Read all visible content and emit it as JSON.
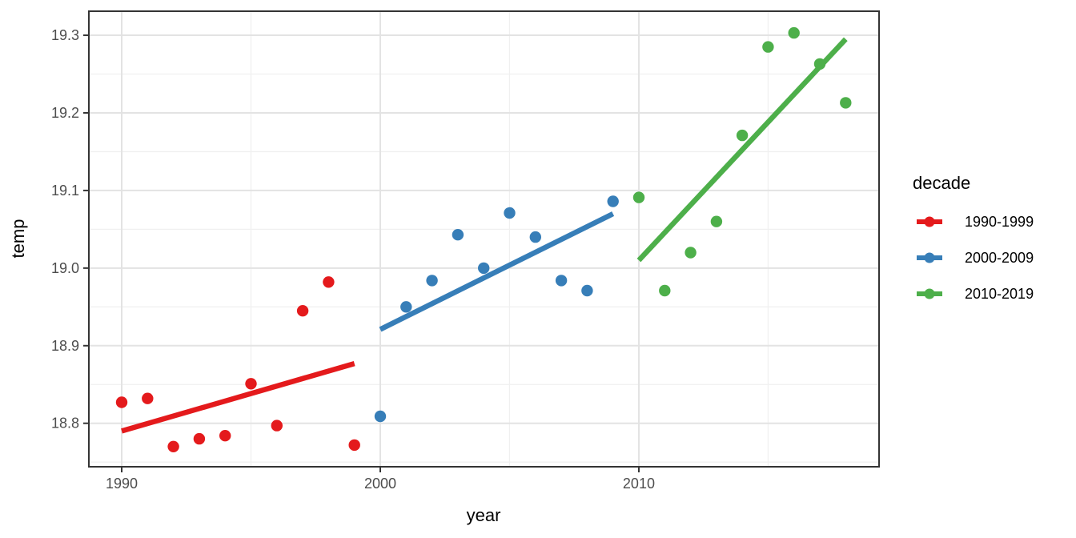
{
  "figure": {
    "background": "#ffffff",
    "panel_border_color": "#343434",
    "major_grid_color": "#e3e3e3",
    "minor_grid_color": "#f0f0f0",
    "tick_label_color": "#4d4d4d"
  },
  "chart_data": {
    "type": "scatter",
    "title": "",
    "xlabel": "year",
    "ylabel": "temp",
    "legend_title": "decade",
    "legend_position": "right",
    "grid": true,
    "xlim": [
      1988.73,
      2019.29
    ],
    "ylim": [
      18.744,
      19.331
    ],
    "x_major_ticks": [
      1990,
      2000,
      2010
    ],
    "x_minor_gridlines": [
      1995,
      2005,
      2015
    ],
    "y_major_ticks": [
      "18.8",
      "18.9",
      "19.0",
      "19.1",
      "19.2",
      "19.3"
    ],
    "y_minor_gridlines": [
      18.75,
      18.85,
      18.95,
      19.05,
      19.15,
      19.25
    ],
    "series": [
      {
        "name": "1990-1999",
        "color": "#E41A1C",
        "years": [
          1990,
          1991,
          1992,
          1993,
          1994,
          1995,
          1996,
          1997,
          1998,
          1999
        ],
        "temps": [
          18.827,
          18.832,
          18.77,
          18.78,
          18.784,
          18.851,
          18.797,
          18.945,
          18.982,
          18.772
        ],
        "trend": {
          "x1": 1990,
          "y1": 18.79,
          "x2": 1999,
          "y2": 18.877
        }
      },
      {
        "name": "2000-2009",
        "color": "#377EB8",
        "years": [
          2000,
          2001,
          2002,
          2003,
          2004,
          2005,
          2006,
          2007,
          2008,
          2009
        ],
        "temps": [
          18.809,
          18.95,
          18.984,
          19.043,
          19.0,
          19.071,
          19.04,
          18.984,
          18.971,
          19.086
        ],
        "trend": {
          "x1": 2000,
          "y1": 18.921,
          "x2": 2009,
          "y2": 19.07
        }
      },
      {
        "name": "2010-2019",
        "color": "#4DAF4A",
        "years": [
          2010,
          2011,
          2012,
          2013,
          2014,
          2015,
          2016,
          2017,
          2018
        ],
        "temps": [
          19.091,
          18.971,
          19.02,
          19.06,
          19.171,
          19.285,
          19.303,
          19.263,
          19.213
        ],
        "trend": {
          "x1": 2010,
          "y1": 19.01,
          "x2": 2018,
          "y2": 19.295
        }
      }
    ]
  }
}
